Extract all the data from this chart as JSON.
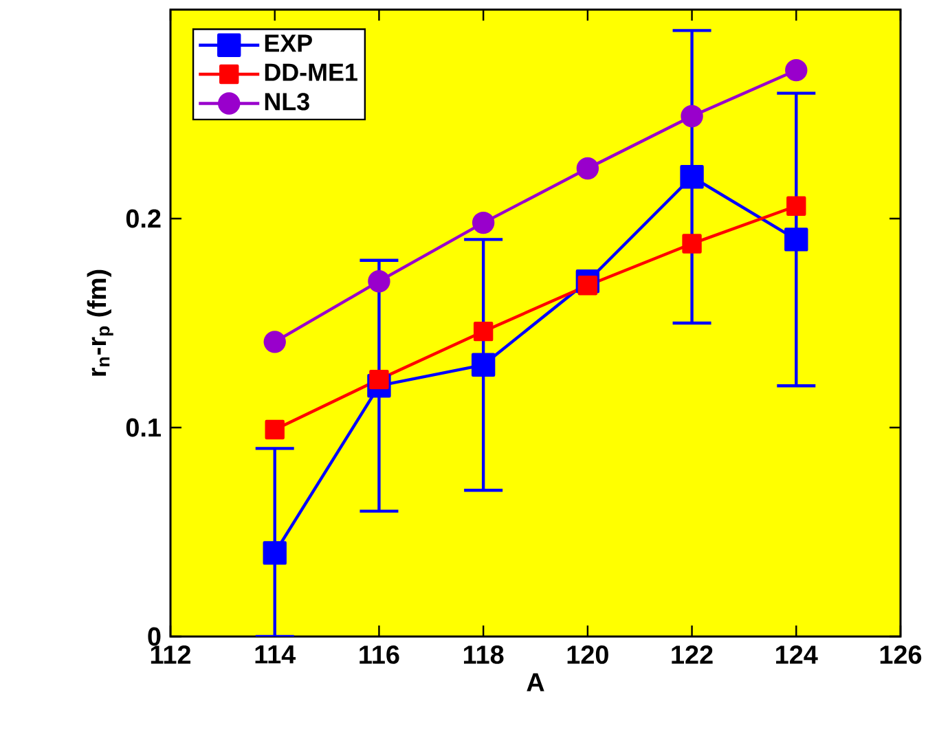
{
  "chart_data": {
    "type": "line",
    "xlabel": "A",
    "ylabel": "r$_{n}$-r$_{p}$ (fm)",
    "x": [
      114,
      116,
      118,
      120,
      122,
      124
    ],
    "series": [
      {
        "name": "EXP",
        "color": "#0000ff",
        "marker": "square",
        "values": [
          0.04,
          0.12,
          0.13,
          0.17,
          0.22,
          0.19
        ],
        "errors": [
          [
            0,
            0.09
          ],
          [
            0.06,
            0.18
          ],
          [
            0.07,
            0.19
          ],
          null,
          [
            0.15,
            0.29
          ],
          [
            0.12,
            0.26
          ]
        ]
      },
      {
        "name": "DD-ME1",
        "color": "#ff0000",
        "marker": "square",
        "values": [
          0.099,
          0.123,
          0.146,
          0.168,
          0.188,
          0.206
        ]
      },
      {
        "name": "NL3",
        "color": "#9900cc",
        "marker": "circle",
        "values": [
          0.141,
          0.17,
          0.198,
          0.224,
          0.249,
          0.271
        ]
      }
    ],
    "xlim": [
      112,
      126
    ],
    "ylim": [
      0,
      0.3
    ],
    "xticks": [
      112,
      114,
      116,
      118,
      120,
      122,
      124,
      126
    ],
    "yticks": [
      0,
      0.1,
      0.2
    ],
    "legend": "top left",
    "grid": false
  }
}
